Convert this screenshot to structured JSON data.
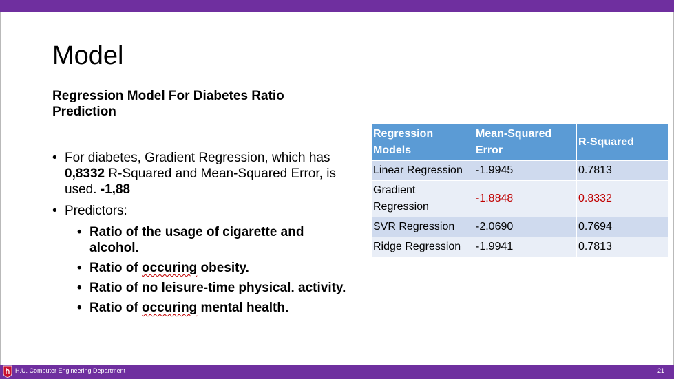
{
  "slide": {
    "title": "Model",
    "subtitle": "Regression Model For Diabetes Ratio Prediction",
    "bullets": {
      "first_prefix": "For diabetes, Gradient Regression, which has ",
      "first_bold_value": "0,8332",
      "first_middle": " R-Squared and Mean-Squared Error, is used. ",
      "first_bold_mse": "-1,88",
      "predictors_label": "Predictors:",
      "sub_1": "Ratio of the usage of cigarette and alcohol.",
      "sub_2_before": "Ratio of ",
      "sub_2_word": "occuring",
      "sub_2_after": " obesity.",
      "sub_3": "Ratio of no leisure-time physical. activity.",
      "sub_4_before": "Ratio of ",
      "sub_4_word": "occuring",
      "sub_4_after": " mental health."
    }
  },
  "table": {
    "headers": [
      "Regression Models",
      "Mean-Squared Error",
      "R-Squared"
    ],
    "rows": [
      [
        "Linear Regression",
        "-1.9945",
        "0.7813"
      ],
      [
        "Gradient Regression",
        "-1.8848",
        "0.8332"
      ],
      [
        "SVR Regression",
        "-2.0690",
        "0.7694"
      ],
      [
        "Ridge Regression",
        "-1.9941",
        "0.7813"
      ]
    ],
    "highlight_color": "#c00000",
    "header_color": "#5b9bd5"
  },
  "footer": {
    "department": "H.U. Computer Engineering Department",
    "page_number": "21",
    "logo_icon": "university-logo-icon",
    "bar_color": "#6f2f9f"
  }
}
